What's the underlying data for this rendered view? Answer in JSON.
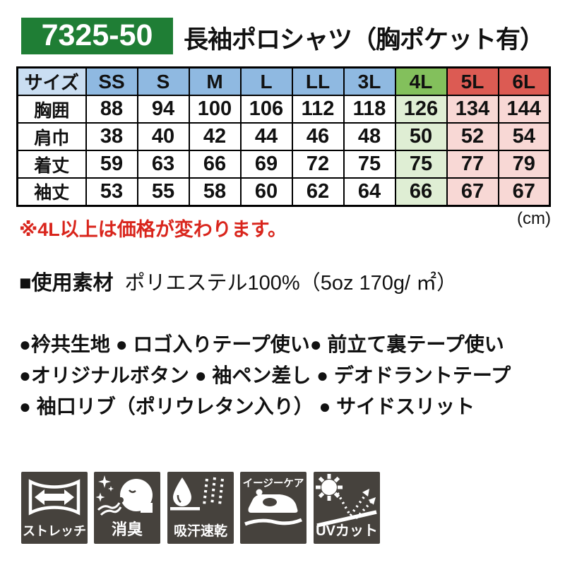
{
  "header": {
    "product_code": "7325-50",
    "title": "長袖ポロシャツ（胸ポケット有）"
  },
  "size_table": {
    "corner_label": "サイズ",
    "columns": [
      "SS",
      "S",
      "M",
      "L",
      "LL",
      "3L",
      "4L",
      "5L",
      "6L"
    ],
    "rows": [
      {
        "label": "胸囲",
        "values": [
          "88",
          "94",
          "100",
          "106",
          "112",
          "118",
          "126",
          "134",
          "144"
        ]
      },
      {
        "label": "肩巾",
        "values": [
          "38",
          "40",
          "42",
          "44",
          "46",
          "48",
          "50",
          "52",
          "54"
        ]
      },
      {
        "label": "着丈",
        "values": [
          "59",
          "63",
          "66",
          "69",
          "72",
          "75",
          "75",
          "77",
          "79"
        ]
      },
      {
        "label": "袖丈",
        "values": [
          "53",
          "55",
          "58",
          "60",
          "62",
          "64",
          "66",
          "67",
          "67"
        ]
      }
    ],
    "unit": "(cm)"
  },
  "notes": {
    "price_note": "※4L以上は価格が変わります。"
  },
  "material": {
    "label": "■使用素材",
    "value": "ポリエステル100%（5oz 170g/ ㎡）"
  },
  "features": [
    "●衿共生地 ● ロゴ入りテープ使い● 前立て裏テープ使い",
    "●オリジナルボタン ● 袖ペン差し ● デオドラントテープ",
    "● 袖口リブ（ポリウレタン入り） ● サイドスリット"
  ],
  "feature_icons": [
    {
      "name": "stretch-icon",
      "label": "ストレッチ"
    },
    {
      "name": "deodorant-icon",
      "label": "消臭"
    },
    {
      "name": "sweat-quick-dry-icon",
      "label": "吸汗速乾"
    },
    {
      "name": "easy-care-icon",
      "label": "イージーケア"
    },
    {
      "name": "uv-cut-icon",
      "label": "UVカット"
    }
  ],
  "colors": {
    "badge_green": "#1f7e35",
    "header_blue": "#8fb9e1",
    "corner_blue": "#cadef2",
    "col4l_green": "#83c05c",
    "col56l_red": "#dc5b53",
    "cell_green": "#dfeed4",
    "cell_pink": "#f8d8d5",
    "icon_gray": "#46423d",
    "note_red": "#d9251c"
  }
}
